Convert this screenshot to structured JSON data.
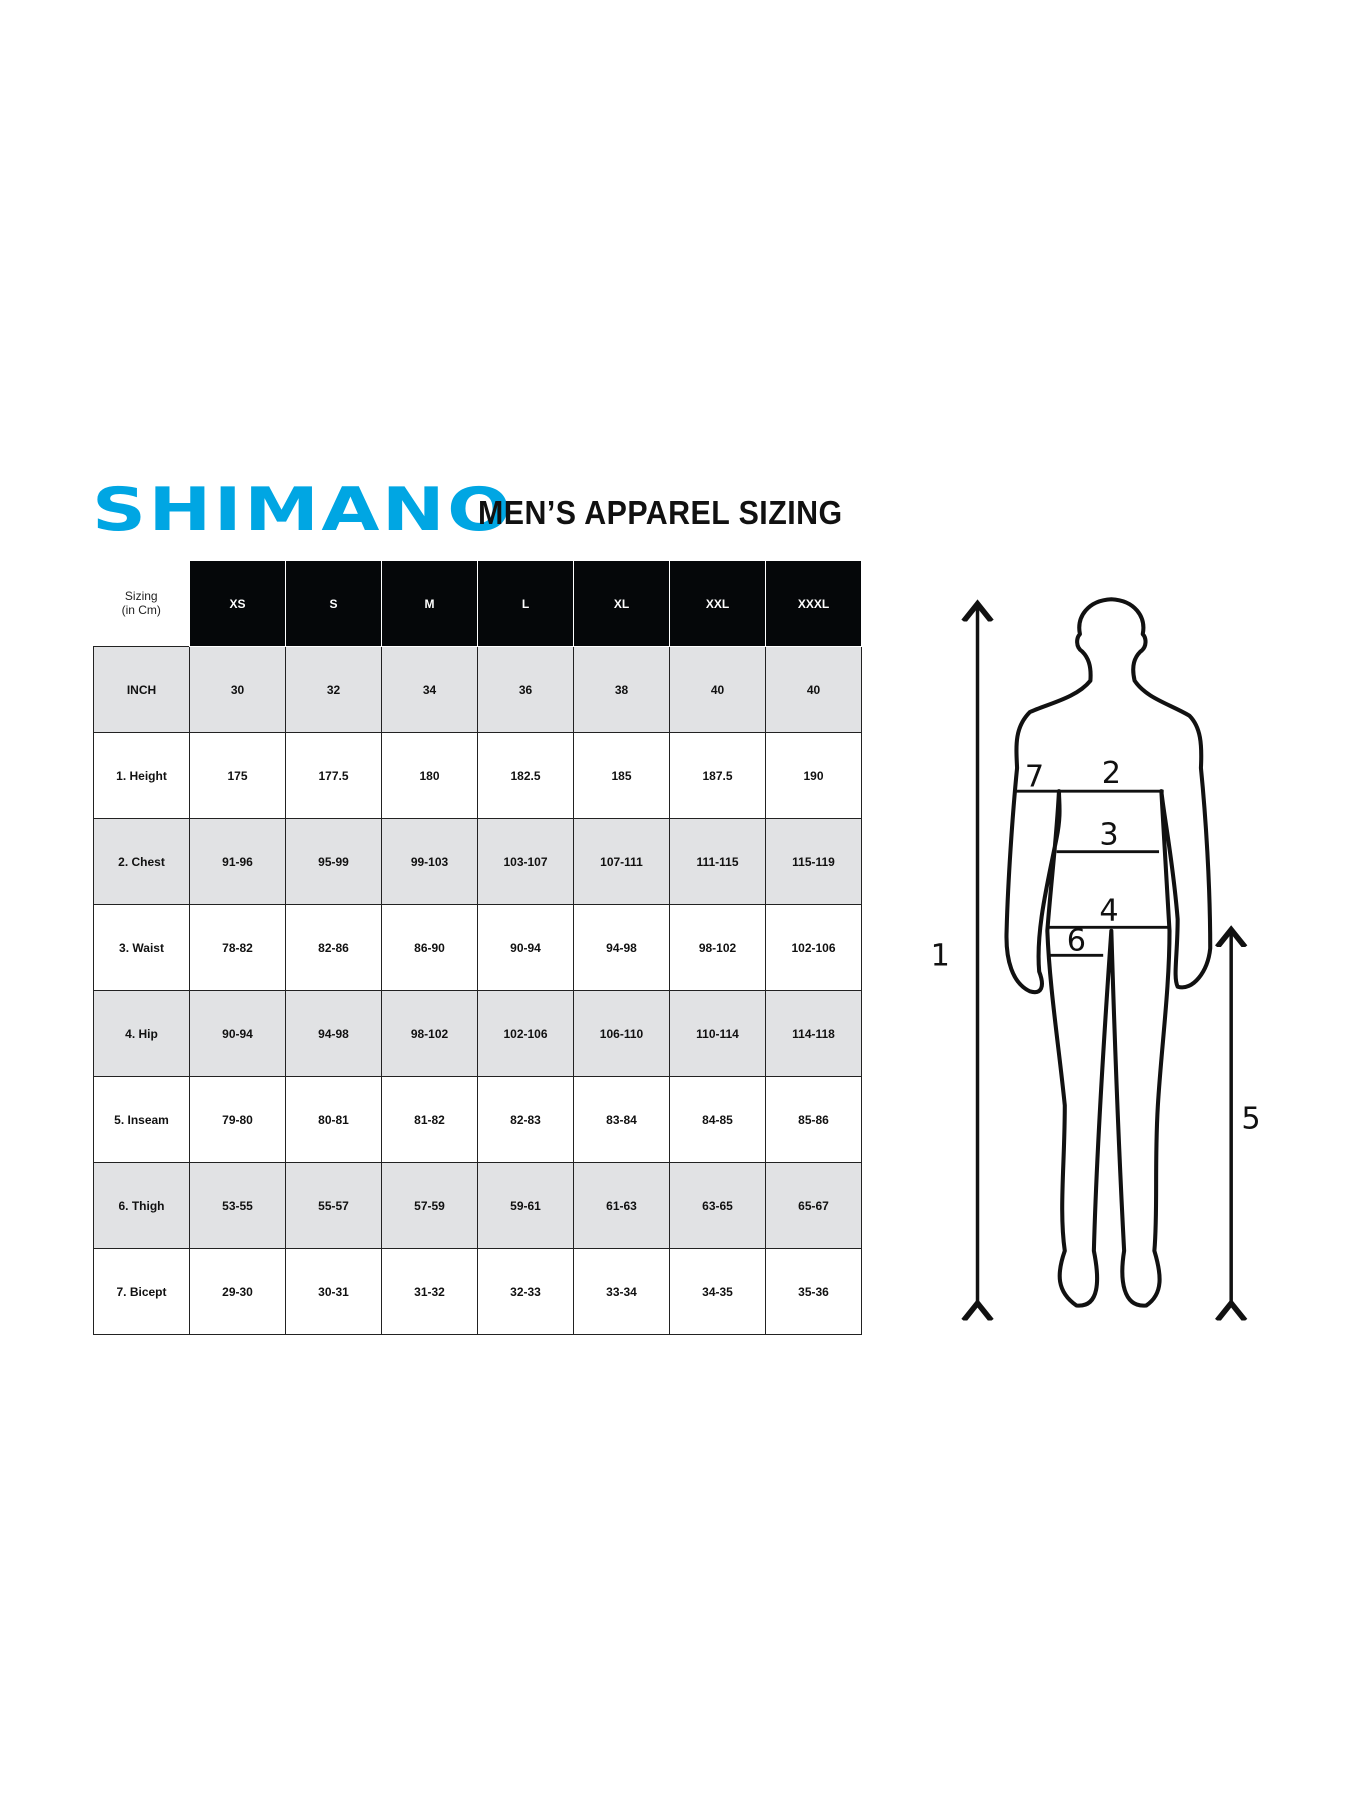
{
  "brand": {
    "logo": "SHIMANO",
    "color": "#00a6e3"
  },
  "title": "MEN’S APPAREL SIZING",
  "table": {
    "corner": [
      "Sizing",
      "(in Cm)"
    ],
    "sizes": [
      "XS",
      "S",
      "M",
      "L",
      "XL",
      "XXL",
      "XXXL"
    ],
    "rows": [
      {
        "label": "INCH",
        "values": [
          "30",
          "32",
          "34",
          "36",
          "38",
          "40",
          "40"
        ],
        "shaded": true
      },
      {
        "label": "1. Height",
        "values": [
          "175",
          "177.5",
          "180",
          "182.5",
          "185",
          "187.5",
          "190"
        ],
        "shaded": false
      },
      {
        "label": "2. Chest",
        "values": [
          "91-96",
          "95-99",
          "99-103",
          "103-107",
          "107-111",
          "111-115",
          "115-119"
        ],
        "shaded": true
      },
      {
        "label": "3. Waist",
        "values": [
          "78-82",
          "82-86",
          "86-90",
          "90-94",
          "94-98",
          "98-102",
          "102-106"
        ],
        "shaded": false
      },
      {
        "label": "4. Hip",
        "values": [
          "90-94",
          "94-98",
          "98-102",
          "102-106",
          "106-110",
          "110-114",
          "114-118"
        ],
        "shaded": true
      },
      {
        "label": "5. Inseam",
        "values": [
          "79-80",
          "80-81",
          "81-82",
          "82-83",
          "83-84",
          "84-85",
          "85-86"
        ],
        "shaded": false
      },
      {
        "label": "6. Thigh",
        "values": [
          "53-55",
          "55-57",
          "57-59",
          "59-61",
          "61-63",
          "63-65",
          "65-67"
        ],
        "shaded": true
      },
      {
        "label": "7. Bicept",
        "values": [
          "29-30",
          "30-31",
          "31-32",
          "32-33",
          "33-34",
          "34-35",
          "35-36"
        ],
        "shaded": false
      }
    ]
  },
  "figure": {
    "labels": [
      "1",
      "2",
      "3",
      "4",
      "5",
      "6",
      "7"
    ]
  }
}
